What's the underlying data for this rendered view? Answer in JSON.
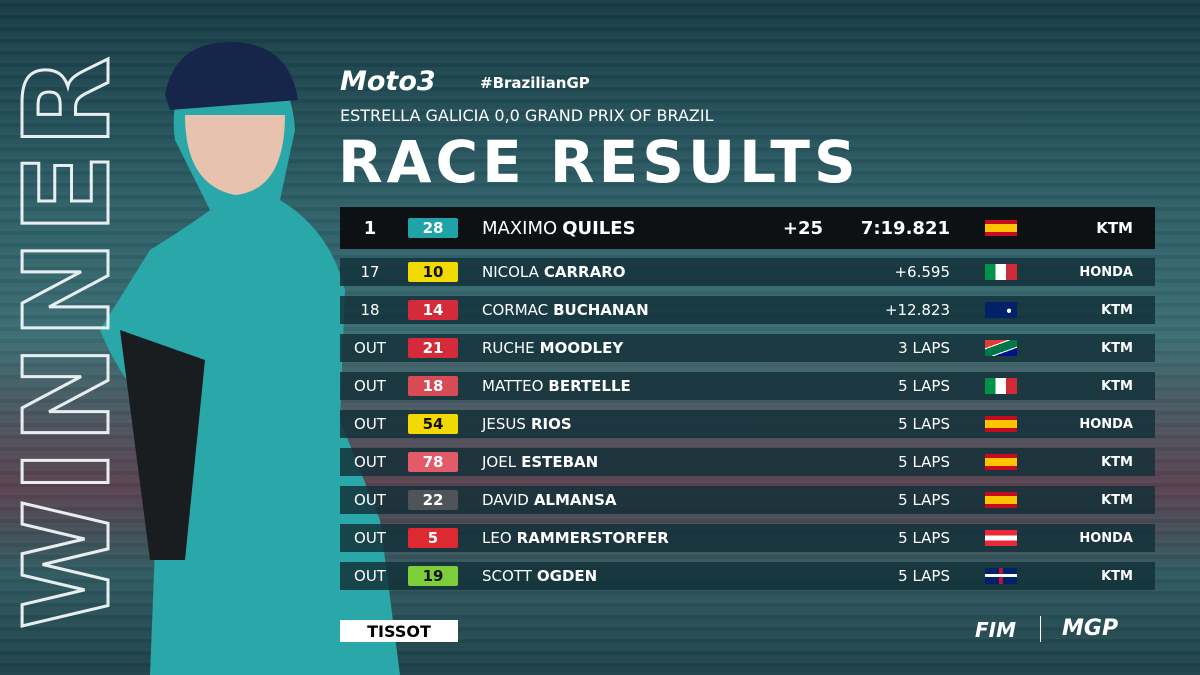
{
  "header": {
    "series": "Moto3",
    "hashtag": "#BrazilianGP",
    "event": "ESTRELLA GALICIA 0,0 GRAND PRIX OF BRAZIL",
    "title": "RACE RESULTS"
  },
  "side_label": "WINNER",
  "table": {
    "rows": [
      {
        "pos": "1",
        "number": "28",
        "badge_color": "#1fa3a6",
        "first": "MAXIMO",
        "last": "QUILES",
        "points": "+25",
        "time": "7:19.821",
        "team": "KTM"
      },
      {
        "pos": "17",
        "number": "10",
        "badge_color": "#f2d900",
        "first": "NICOLA",
        "last": "CARRARO",
        "time": "+6.595",
        "team": "HONDA"
      },
      {
        "pos": "18",
        "number": "14",
        "badge_color": "#d42a3a",
        "first": "CORMAC",
        "last": "BUCHANAN",
        "time": "+12.823",
        "team": "KTM"
      },
      {
        "pos": "OUT",
        "number": "21",
        "badge_color": "#d42a3a",
        "first": "RUCHE",
        "last": "MOODLEY",
        "time": "3 LAPS",
        "team": "KTM"
      },
      {
        "pos": "OUT",
        "number": "18",
        "badge_color": "#d94a57",
        "first": "MATTEO",
        "last": "BERTELLE",
        "time": "5 LAPS",
        "team": "KTM"
      },
      {
        "pos": "OUT",
        "number": "54",
        "badge_color": "#f2d900",
        "first": "JESUS",
        "last": "RIOS",
        "time": "5 LAPS",
        "team": "HONDA"
      },
      {
        "pos": "OUT",
        "number": "78",
        "badge_color": "#e35a68",
        "first": "JOEL",
        "last": "ESTEBAN",
        "time": "5 LAPS",
        "team": "KTM"
      },
      {
        "pos": "OUT",
        "number": "22",
        "badge_color": "#505357",
        "first": "DAVID",
        "last": "ALMANSA",
        "time": "5 LAPS",
        "team": "KTM"
      },
      {
        "pos": "OUT",
        "number": "5",
        "badge_color": "#dd2a30",
        "first": "LEO",
        "last": "RAMMERSTORFER",
        "time": "5 LAPS",
        "team": "HONDA"
      },
      {
        "pos": "OUT",
        "number": "19",
        "badge_color": "#7ccf3a",
        "first": "SCOTT",
        "last": "OGDEN",
        "time": "5 LAPS",
        "team": "KTM"
      }
    ]
  },
  "footer": {
    "sponsor": "TISSOT",
    "logos": [
      "FIM",
      "MGP"
    ]
  }
}
